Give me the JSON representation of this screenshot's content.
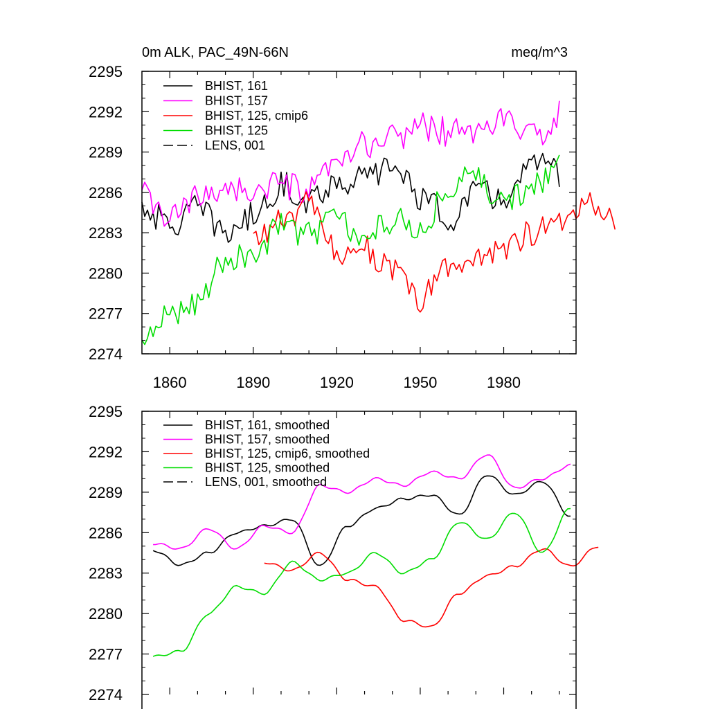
{
  "chart_data": [
    {
      "type": "line",
      "title": "0m ALK, PAC_49N-66N",
      "units": "meq/m^3",
      "xlim": [
        1850,
        2006
      ],
      "ylim": [
        2274,
        2295
      ],
      "xticks": [
        1860,
        1890,
        1920,
        1950,
        1980
      ],
      "yticks": [
        2274,
        2277,
        2280,
        2283,
        2286,
        2289,
        2292,
        2295
      ],
      "legend_position": "top-left",
      "legend": [
        "BHIST, 161",
        "BHIST, 157",
        "BHIST, 125, cmip6",
        "BHIST, 125",
        "LENS, 001"
      ],
      "series": [
        {
          "name": "BHIST, 161",
          "color": "#000000",
          "dash": "solid",
          "x_start": 1850,
          "x_step": 10,
          "values": [
            2285.0,
            2283.5,
            2284.8,
            2283.0,
            2284.2,
            2286.5,
            2285.5,
            2286.8,
            2287.0,
            2288.0,
            2285.8,
            2284.0,
            2286.0,
            2285.5,
            2288.0,
            2287.5
          ]
        },
        {
          "name": "BHIST, 157",
          "color": "#ff00ff",
          "dash": "solid",
          "x_start": 1850,
          "x_step": 10,
          "values": [
            2285.8,
            2284.0,
            2285.5,
            2286.5,
            2286.0,
            2286.5,
            2286.0,
            2288.0,
            2289.5,
            2290.0,
            2291.0,
            2290.5,
            2290.5,
            2291.5,
            2290.0,
            2291.8
          ]
        },
        {
          "name": "BHIST, 125, cmip6",
          "color": "#ff0000",
          "dash": "solid",
          "x_start": 1890,
          "x_step": 10,
          "values": [
            2282.5,
            2283.8,
            2285.0,
            2281.5,
            2282.0,
            2280.0,
            2278.0,
            2280.5,
            2281.0,
            2282.0,
            2283.0,
            2283.5,
            2285.5,
            2284.3
          ]
        },
        {
          "name": "BHIST, 125",
          "color": "#00dd00",
          "dash": "solid",
          "x_start": 1850,
          "x_step": 10,
          "values": [
            2274.5,
            2277.0,
            2278.0,
            2281.0,
            2281.5,
            2283.5,
            2283.0,
            2284.0,
            2282.5,
            2284.0,
            2283.5,
            2286.0,
            2287.5,
            2285.0,
            2286.5,
            2288.0
          ]
        }
      ]
    },
    {
      "type": "line",
      "xlim": [
        1850,
        2006
      ],
      "ylim": [
        2274,
        2295
      ],
      "yticks": [
        2274,
        2277,
        2280,
        2283,
        2286,
        2289,
        2292,
        2295
      ],
      "legend_position": "top-left",
      "legend": [
        "BHIST, 161, smoothed",
        "BHIST, 157, smoothed",
        "BHIST, 125, cmip6, smoothed",
        "BHIST, 125, smoothed",
        "LENS, 001, smoothed"
      ],
      "series": [
        {
          "name": "BHIST, 161, smoothed",
          "color": "#000000",
          "dash": "solid",
          "x_start": 1854,
          "x_step": 10,
          "values": [
            2284.7,
            2283.6,
            2284.5,
            2286.0,
            2286.5,
            2287.0,
            2283.5,
            2286.5,
            2287.8,
            2288.5,
            2288.8,
            2287.3,
            2290.3,
            2288.8,
            2289.8,
            2287.2
          ]
        },
        {
          "name": "BHIST, 157, smoothed",
          "color": "#ff00ff",
          "dash": "solid",
          "x_start": 1854,
          "x_step": 10,
          "values": [
            2285.2,
            2284.8,
            2286.3,
            2284.8,
            2286.5,
            2286.0,
            2289.5,
            2289.0,
            2290.0,
            2289.5,
            2290.5,
            2290.0,
            2291.8,
            2289.3,
            2290.0,
            2291.0
          ]
        },
        {
          "name": "BHIST, 125, cmip6, smoothed",
          "color": "#ff0000",
          "dash": "solid",
          "x_start": 1894,
          "x_step": 10,
          "values": [
            2283.8,
            2283.2,
            2284.5,
            2282.5,
            2282.0,
            2279.5,
            2279.0,
            2281.5,
            2282.8,
            2283.5,
            2284.8,
            2283.5,
            2285.0
          ]
        },
        {
          "name": "BHIST, 125, smoothed",
          "color": "#00dd00",
          "dash": "solid",
          "x_start": 1854,
          "x_step": 10,
          "values": [
            2276.8,
            2277.2,
            2280.0,
            2282.0,
            2281.5,
            2283.8,
            2282.5,
            2283.0,
            2284.5,
            2283.0,
            2284.0,
            2286.8,
            2285.5,
            2287.5,
            2284.5,
            2287.8
          ]
        }
      ]
    }
  ]
}
